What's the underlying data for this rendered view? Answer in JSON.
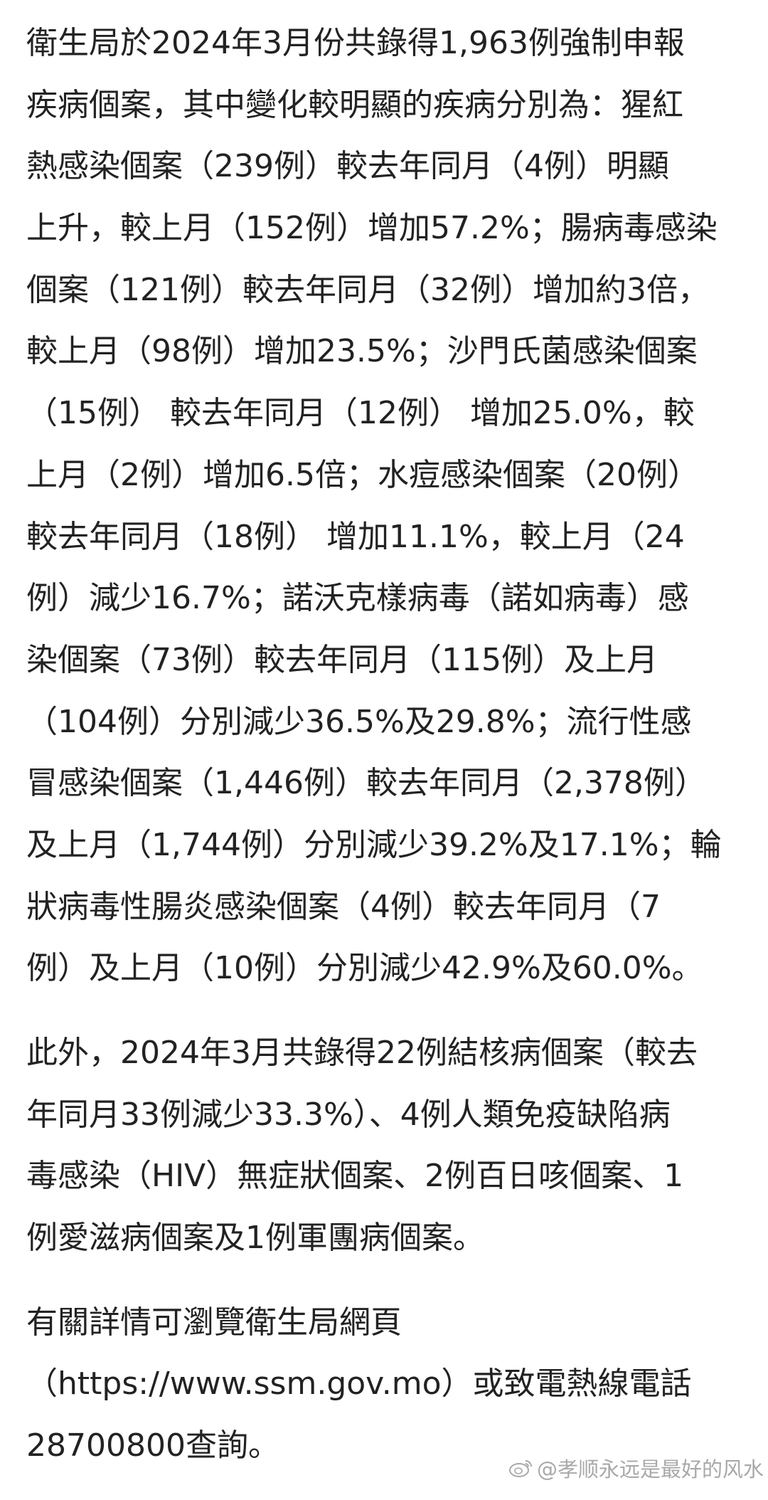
{
  "paragraphs": [
    {
      "lines": [
        "衛生局於2024年3月份共錄得1,963例強制申報",
        "疾病個案，其中變化較明顯的疾病分別為：猩紅",
        "熱感染個案（239例）較去年同月（4例）明顯",
        "上升，較上月（152例）增加57.2%；腸病毒感染",
        "個案（121例）較去年同月（32例）增加約3倍，",
        "較上月（98例）增加23.5%；沙門氏菌感染個案",
        "（15例） 較去年同月（12例） 增加25.0%，較",
        "上月（2例）增加6.5倍；水痘感染個案（20例）",
        "較去年同月（18例） 增加11.1%，較上月（24",
        "例）減少16.7%；諾沃克樣病毒（諾如病毒）感",
        "染個案（73例）較去年同月（115例）及上月",
        "（104例）分別減少36.5%及29.8%；流行性感",
        "冒感染個案（1,446例）較去年同月（2,378例）",
        "及上月（1,744例）分別減少39.2%及17.1%；輪",
        "狀病毒性腸炎感染個案（4例）較去年同月（7",
        "例）及上月（10例）分別減少42.9%及60.0%。"
      ]
    },
    {
      "lines": [
        "此外，2024年3月共錄得22例結核病個案（較去",
        "年同月33例減少33.3%）、4例人類免疫缺陷病",
        "毒感染（HIV）無症狀個案、2例百日咳個案、1",
        "例愛滋病個案及1例軍團病個案。"
      ]
    },
    {
      "lines": [
        "有關詳情可瀏覽衛生局網頁",
        "（https://www.ssm.gov.mo）或致電熱線電話",
        "28700800查詢。"
      ]
    }
  ],
  "watermark": {
    "text": "@孝顺永远是最好的风水",
    "icon": "weibo-logo-icon"
  },
  "colors": {
    "text": "#222222",
    "background": "#ffffff",
    "watermark": "#9a9a9a"
  }
}
